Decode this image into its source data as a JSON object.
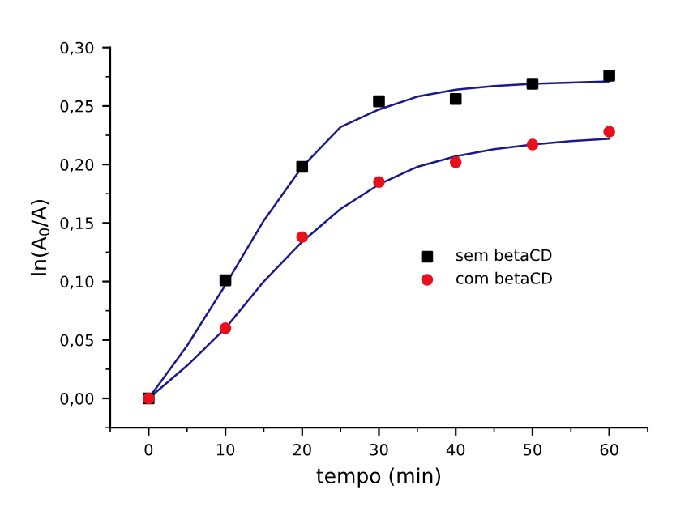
{
  "chart_data": {
    "type": "scatter",
    "xlabel": "tempo (min)",
    "ylabel": "ln(A$_{0}$/A)",
    "xlim": [
      -5,
      65
    ],
    "ylim": [
      -0.025,
      0.3
    ],
    "xticks": [
      0,
      10,
      20,
      30,
      40,
      50,
      60
    ],
    "yticks": [
      {
        "value": 0,
        "label": "0,00"
      },
      {
        "value": 0.05,
        "label": "0,05"
      },
      {
        "value": 0.1,
        "label": "0,10"
      },
      {
        "value": 0.15,
        "label": "0,15"
      },
      {
        "value": 0.2,
        "label": "0,20"
      },
      {
        "value": 0.25,
        "label": "0,25"
      },
      {
        "value": 0.3,
        "label": "0,30"
      }
    ],
    "legend": "right",
    "grid": false,
    "series": [
      {
        "name": "sem betaCD",
        "color": "#000000",
        "marker": "square",
        "x": [
          0,
          10,
          20,
          30,
          40,
          50,
          60
        ],
        "values": [
          0,
          0.101,
          0.198,
          0.254,
          0.256,
          0.269,
          0.276
        ]
      },
      {
        "name": "com betaCD",
        "color": "#e8101e",
        "marker": "circle",
        "x": [
          0,
          10,
          20,
          30,
          40,
          50,
          60
        ],
        "values": [
          0,
          0.06,
          0.138,
          0.185,
          0.202,
          0.217,
          0.228
        ]
      },
      {
        "type": "line",
        "color": "#1a1a8c",
        "marker": "none",
        "x": [
          0,
          5,
          10,
          15,
          20,
          25,
          30,
          35,
          40,
          45,
          50,
          55,
          60
        ],
        "values": [
          0,
          0.045,
          0.097,
          0.152,
          0.198,
          0.232,
          0.247,
          0.258,
          0.264,
          0.267,
          0.269,
          0.27,
          0.271
        ]
      },
      {
        "type": "line",
        "color": "#1a1a8c",
        "marker": "none",
        "x": [
          0,
          5,
          10,
          15,
          20,
          25,
          30,
          35,
          40,
          45,
          50,
          55,
          60
        ],
        "values": [
          0,
          0.028,
          0.06,
          0.1,
          0.134,
          0.162,
          0.183,
          0.198,
          0.207,
          0.213,
          0.217,
          0.22,
          0.222
        ]
      }
    ]
  }
}
